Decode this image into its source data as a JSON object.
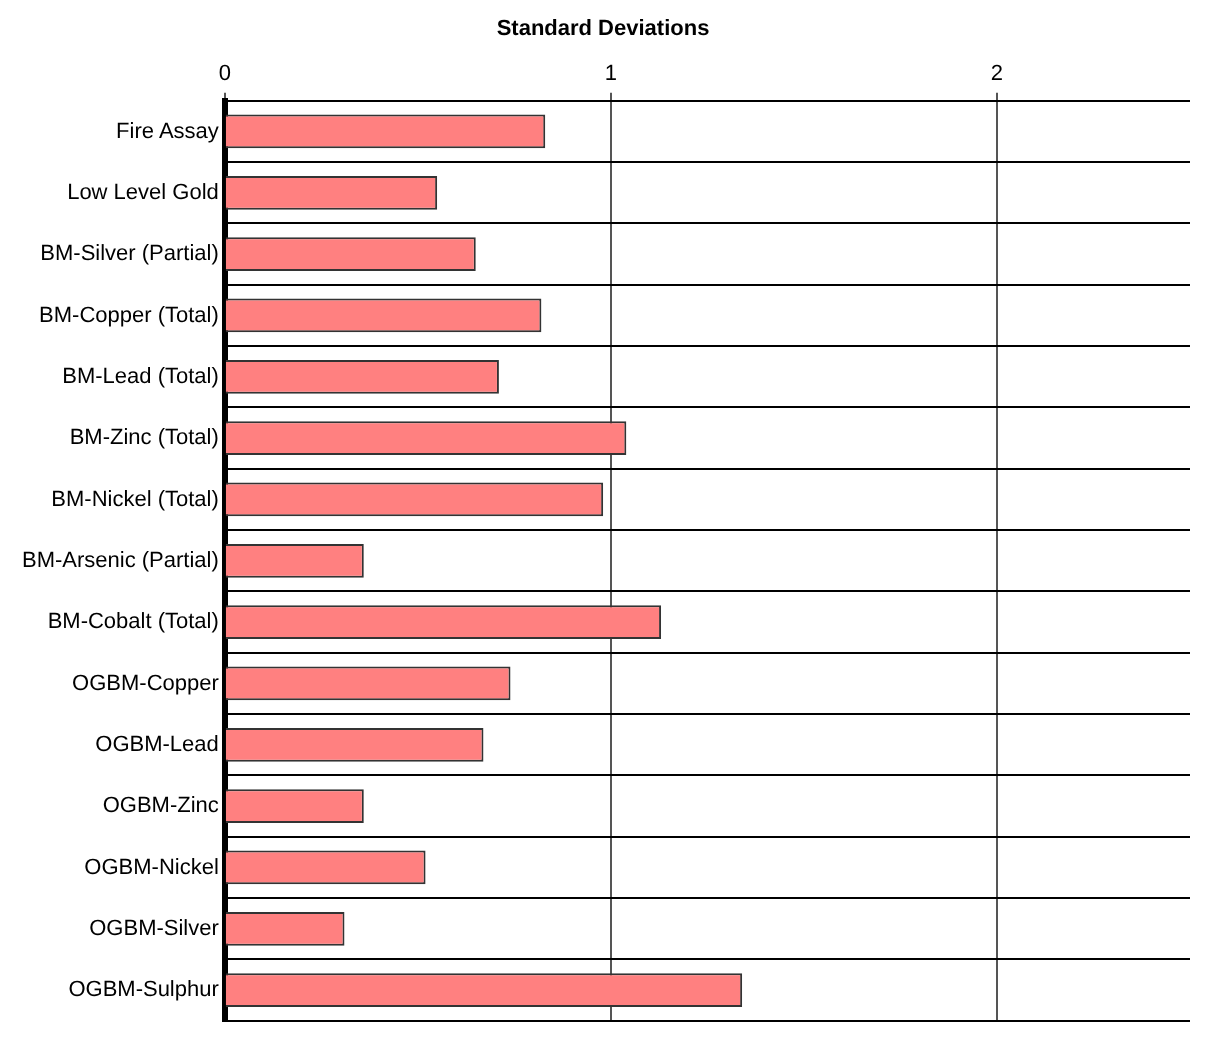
{
  "chart_data": {
    "type": "bar",
    "orientation": "horizontal",
    "title": "Standard Deviations",
    "categories": [
      "Fire Assay",
      "Low Level Gold",
      "BM-Silver (Partial)",
      "BM-Copper (Total)",
      "BM-Lead (Total)",
      "BM-Zinc (Total)",
      "BM-Nickel (Total)",
      "BM-Arsenic (Partial)",
      "BM-Cobalt (Total)",
      "OGBM-Copper",
      "OGBM-Lead",
      "OGBM-Zinc",
      "OGBM-Nickel",
      "OGBM-Silver",
      "OGBM-Sulphur"
    ],
    "values": [
      0.83,
      0.55,
      0.65,
      0.82,
      0.71,
      1.04,
      0.98,
      0.36,
      1.13,
      0.74,
      0.67,
      0.36,
      0.52,
      0.31,
      1.34
    ],
    "color": "#ff8080",
    "xlim": [
      0,
      2.5
    ],
    "xticks": [
      0,
      1,
      2
    ],
    "grid": true
  }
}
